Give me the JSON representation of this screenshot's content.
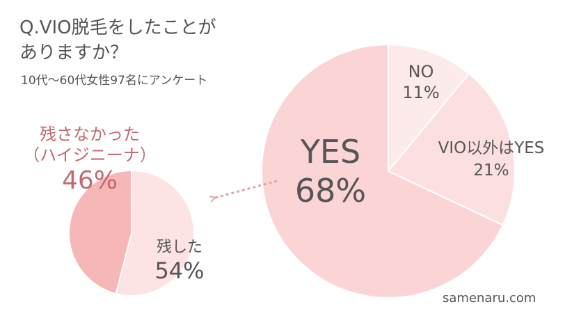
{
  "title_line1": "Q.VIO脱毛をしたことが",
  "title_line2": "ありますか？",
  "subtitle": "10代～60代女性97名にアンケート",
  "watermark": "samenaru.com",
  "colors": {
    "yes": "#fbd5d6",
    "no": "#fdeaea",
    "other": "#fce0e1",
    "remained": "#fde3e4",
    "not_remained": "#f6b7b9",
    "accent": "#c26a70",
    "arrow": "#e2a4a8",
    "text": "#555555"
  },
  "chart_data": [
    {
      "type": "pie",
      "title": "",
      "slices": [
        {
          "label": "YES",
          "value": 68,
          "display": "68%"
        },
        {
          "label": "NO",
          "value": 11,
          "display": "11%"
        },
        {
          "label": "VIO以外はYES",
          "value": 21,
          "display": "21%"
        }
      ]
    },
    {
      "type": "pie",
      "title": "",
      "slices": [
        {
          "label": "残さなかった",
          "sublabel": "（ハイジニーナ）",
          "value": 46,
          "display": "46%"
        },
        {
          "label": "残した",
          "value": 54,
          "display": "54%"
        }
      ]
    }
  ]
}
